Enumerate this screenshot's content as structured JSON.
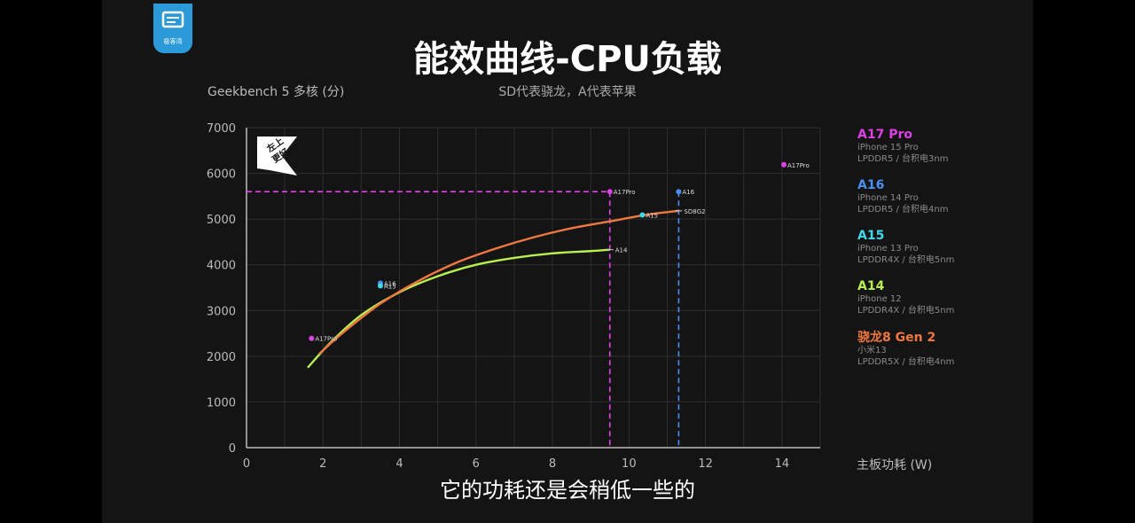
{
  "caption": "它的功耗还是会稍低一些的",
  "logo_text": "极客湾",
  "badge": {
    "line1": "左上",
    "line2": "更好"
  },
  "legend": [
    {
      "name": "A17 Pro",
      "device": "iPhone 15 Pro",
      "memory": "LPDDR5 / 台积电3nm",
      "color": "#e040e8"
    },
    {
      "name": "A16",
      "device": "iPhone 14 Pro",
      "memory": "LPDDR5 / 台积电4nm",
      "color": "#4a8ef0"
    },
    {
      "name": "A15",
      "device": "iPhone 13 Pro",
      "memory": "LPDDR4X / 台积电5nm",
      "color": "#40d8e8"
    },
    {
      "name": "A14",
      "device": "iPhone 12",
      "memory": "LPDDR4X / 台积电5nm",
      "color": "#b8f050"
    },
    {
      "name": "骁龙8 Gen 2",
      "device": "小米13",
      "memory": "LPDDR5X / 台积电4nm",
      "color": "#f07840"
    }
  ],
  "chart_data": {
    "type": "line",
    "title": "能效曲线-CPU负载",
    "subtitle": "SD代表骁龙，A代表苹果",
    "ylabel": "Geekbench 5 多核 (分)",
    "xlabel": "主板功耗 (W)",
    "xlim": [
      0,
      15
    ],
    "ylim": [
      0,
      7000
    ],
    "xticks": [
      0,
      2,
      4,
      6,
      8,
      10,
      12,
      14
    ],
    "yticks": [
      0,
      1000,
      2000,
      3000,
      4000,
      5000,
      6000,
      7000
    ],
    "grid": true,
    "series": [
      {
        "name": "A14",
        "color": "#b8f050",
        "x": [
          1.6,
          2.2,
          3,
          4,
          5,
          6,
          7,
          8,
          9,
          9.5
        ],
        "y": [
          1750,
          2300,
          2900,
          3400,
          3750,
          4000,
          4150,
          4250,
          4300,
          4330
        ],
        "end_label": "A14"
      },
      {
        "name": "骁龙8 Gen 2",
        "color": "#f07840",
        "x": [
          1.9,
          2.5,
          3.5,
          4.5,
          5.5,
          6.5,
          7.5,
          8.5,
          9.5,
          10.5,
          11.3
        ],
        "y": [
          2050,
          2500,
          3150,
          3650,
          4050,
          4350,
          4600,
          4800,
          4950,
          5100,
          5180
        ],
        "end_label": "SD8G2"
      }
    ],
    "points": [
      {
        "label": "A17Pro",
        "x": 1.7,
        "y": 2390,
        "color": "#e040e8"
      },
      {
        "label": "A16",
        "x": 3.5,
        "y": 3600,
        "color": "#4a8ef0"
      },
      {
        "label": "A15",
        "x": 3.5,
        "y": 3540,
        "color": "#40d8e8"
      },
      {
        "label": "A17Pro",
        "x": 9.5,
        "y": 5600,
        "color": "#e040e8"
      },
      {
        "label": "A16",
        "x": 11.3,
        "y": 5600,
        "color": "#4a8ef0"
      },
      {
        "label": "A15",
        "x": 10.35,
        "y": 5090,
        "color": "#40d8e8"
      },
      {
        "label": "A17Pro",
        "x": 14.05,
        "y": 6190,
        "color": "#e040e8"
      }
    ],
    "reference_lines": [
      {
        "color": "#e040e8",
        "x": 9.5,
        "y": 5600,
        "horizontal_from": 0
      },
      {
        "color": "#4a8ef0",
        "x": 11.3,
        "y": 5600
      }
    ]
  }
}
